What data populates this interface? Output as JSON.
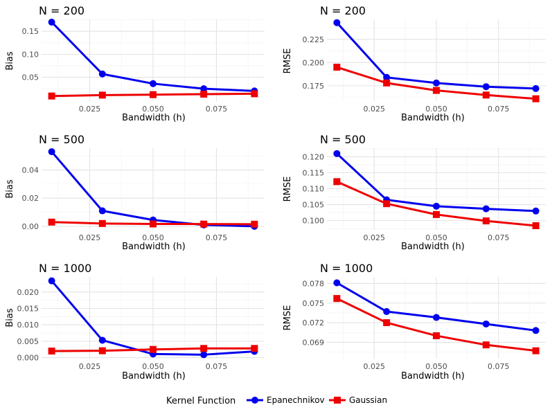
{
  "legend": {
    "title": "Kernel Function",
    "entries": [
      "Epanechnikov",
      "Gaussian"
    ],
    "position": "bottom"
  },
  "colors": {
    "Epanechnikov": "#0000ee",
    "Gaussian": "#ee0000"
  },
  "chart_data": [
    {
      "type": "line",
      "title": "N = 200",
      "xlabel": "Bandwidth (h)",
      "ylabel": "Bias",
      "x": [
        0.01,
        0.03,
        0.05,
        0.07,
        0.09
      ],
      "xlim": [
        0.006,
        0.094
      ],
      "ylim": [
        -0.002,
        0.176
      ],
      "xticks": [
        0.025,
        0.05,
        0.075
      ],
      "xtick_labels": [
        "0.025",
        "0.050",
        "0.075"
      ],
      "yticks": [
        0.05,
        0.1,
        0.15
      ],
      "ytick_labels": [
        "0.05",
        "0.10",
        "0.15"
      ],
      "grid": true,
      "series": [
        {
          "name": "Epanechnikov",
          "marker": "circle",
          "values": [
            0.17,
            0.057,
            0.036,
            0.025,
            0.02
          ]
        },
        {
          "name": "Gaussian",
          "marker": "square",
          "values": [
            0.009,
            0.011,
            0.012,
            0.013,
            0.014
          ]
        }
      ]
    },
    {
      "type": "line",
      "title": "N = 200",
      "xlabel": "Bandwidth (h)",
      "ylabel": "RMSE",
      "x": [
        0.01,
        0.03,
        0.05,
        0.07,
        0.09
      ],
      "xlim": [
        0.006,
        0.094
      ],
      "ylim": [
        0.1585,
        0.2465
      ],
      "xticks": [
        0.025,
        0.05,
        0.075
      ],
      "xtick_labels": [
        "0.025",
        "0.050",
        "0.075"
      ],
      "yticks": [
        0.175,
        0.2,
        0.225
      ],
      "ytick_labels": [
        "0.175",
        "0.200",
        "0.225"
      ],
      "grid": true,
      "series": [
        {
          "name": "Epanechnikov",
          "marker": "circle",
          "values": [
            0.243,
            0.184,
            0.178,
            0.174,
            0.172
          ]
        },
        {
          "name": "Gaussian",
          "marker": "square",
          "values": [
            0.195,
            0.178,
            0.17,
            0.165,
            0.161
          ]
        }
      ]
    },
    {
      "type": "line",
      "title": "N = 500",
      "xlabel": "Bandwidth (h)",
      "ylabel": "Bias",
      "x": [
        0.01,
        0.03,
        0.05,
        0.07,
        0.09
      ],
      "xlim": [
        0.006,
        0.094
      ],
      "ylim": [
        -0.0025,
        0.0555
      ],
      "xticks": [
        0.025,
        0.05,
        0.075
      ],
      "xtick_labels": [
        "0.025",
        "0.050",
        "0.075"
      ],
      "yticks": [
        0,
        0.02,
        0.04
      ],
      "ytick_labels": [
        "0.00",
        "0.02",
        "0.04"
      ],
      "grid": true,
      "series": [
        {
          "name": "Epanechnikov",
          "marker": "circle",
          "values": [
            0.053,
            0.011,
            0.0045,
            0.001,
            0.0
          ]
        },
        {
          "name": "Gaussian",
          "marker": "square",
          "values": [
            0.003,
            0.002,
            0.0017,
            0.0016,
            0.0015
          ]
        }
      ]
    },
    {
      "type": "line",
      "title": "N = 500",
      "xlabel": "Bandwidth (h)",
      "ylabel": "RMSE",
      "x": [
        0.01,
        0.03,
        0.05,
        0.07,
        0.09
      ],
      "xlim": [
        0.006,
        0.094
      ],
      "ylim": [
        0.0971,
        0.1227
      ],
      "xticks": [
        0.025,
        0.05,
        0.075
      ],
      "xtick_labels": [
        "0.025",
        "0.050",
        "0.075"
      ],
      "yticks": [
        0.1,
        0.105,
        0.11,
        0.115,
        0.12
      ],
      "ytick_labels": [
        "0.100",
        "0.105",
        "0.110",
        "0.115",
        "0.120"
      ],
      "grid": true,
      "series": [
        {
          "name": "Epanechnikov",
          "marker": "circle",
          "values": [
            0.121,
            0.1065,
            0.1045,
            0.1037,
            0.103
          ]
        },
        {
          "name": "Gaussian",
          "marker": "square",
          "values": [
            0.1122,
            0.1053,
            0.1019,
            0.0999,
            0.0984
          ]
        }
      ]
    },
    {
      "type": "line",
      "title": "N = 1000",
      "xlabel": "Bandwidth (h)",
      "ylabel": "Bias",
      "x": [
        0.01,
        0.03,
        0.05,
        0.07,
        0.09
      ],
      "xlim": [
        0.006,
        0.094
      ],
      "ylim": [
        -0.0003,
        0.0246
      ],
      "xticks": [
        0.025,
        0.05,
        0.075
      ],
      "xtick_labels": [
        "0.025",
        "0.050",
        "0.075"
      ],
      "yticks": [
        0,
        0.005,
        0.01,
        0.015,
        0.02
      ],
      "ytick_labels": [
        "0.000",
        "0.005",
        "0.010",
        "0.015",
        "0.020"
      ],
      "grid": true,
      "series": [
        {
          "name": "Epanechnikov",
          "marker": "circle",
          "values": [
            0.0234,
            0.0053,
            0.0011,
            0.0009,
            0.0019
          ]
        },
        {
          "name": "Gaussian",
          "marker": "square",
          "values": [
            0.002,
            0.0021,
            0.0025,
            0.0028,
            0.0028
          ]
        }
      ]
    },
    {
      "type": "line",
      "title": "N = 1000",
      "xlabel": "Bandwidth (h)",
      "ylabel": "RMSE",
      "x": [
        0.01,
        0.03,
        0.05,
        0.07,
        0.09
      ],
      "xlim": [
        0.006,
        0.094
      ],
      "ylim": [
        0.0665,
        0.079
      ],
      "xticks": [
        0.025,
        0.05,
        0.075
      ],
      "xtick_labels": [
        "0.025",
        "0.050",
        "0.075"
      ],
      "yticks": [
        0.069,
        0.072,
        0.075,
        0.078
      ],
      "ytick_labels": [
        "0.069",
        "0.072",
        "0.075",
        "0.078"
      ],
      "grid": true,
      "series": [
        {
          "name": "Epanechnikov",
          "marker": "circle",
          "values": [
            0.0781,
            0.0737,
            0.0728,
            0.0718,
            0.0708
          ]
        },
        {
          "name": "Gaussian",
          "marker": "square",
          "values": [
            0.0757,
            0.072,
            0.07,
            0.0686,
            0.0677
          ]
        }
      ]
    }
  ]
}
